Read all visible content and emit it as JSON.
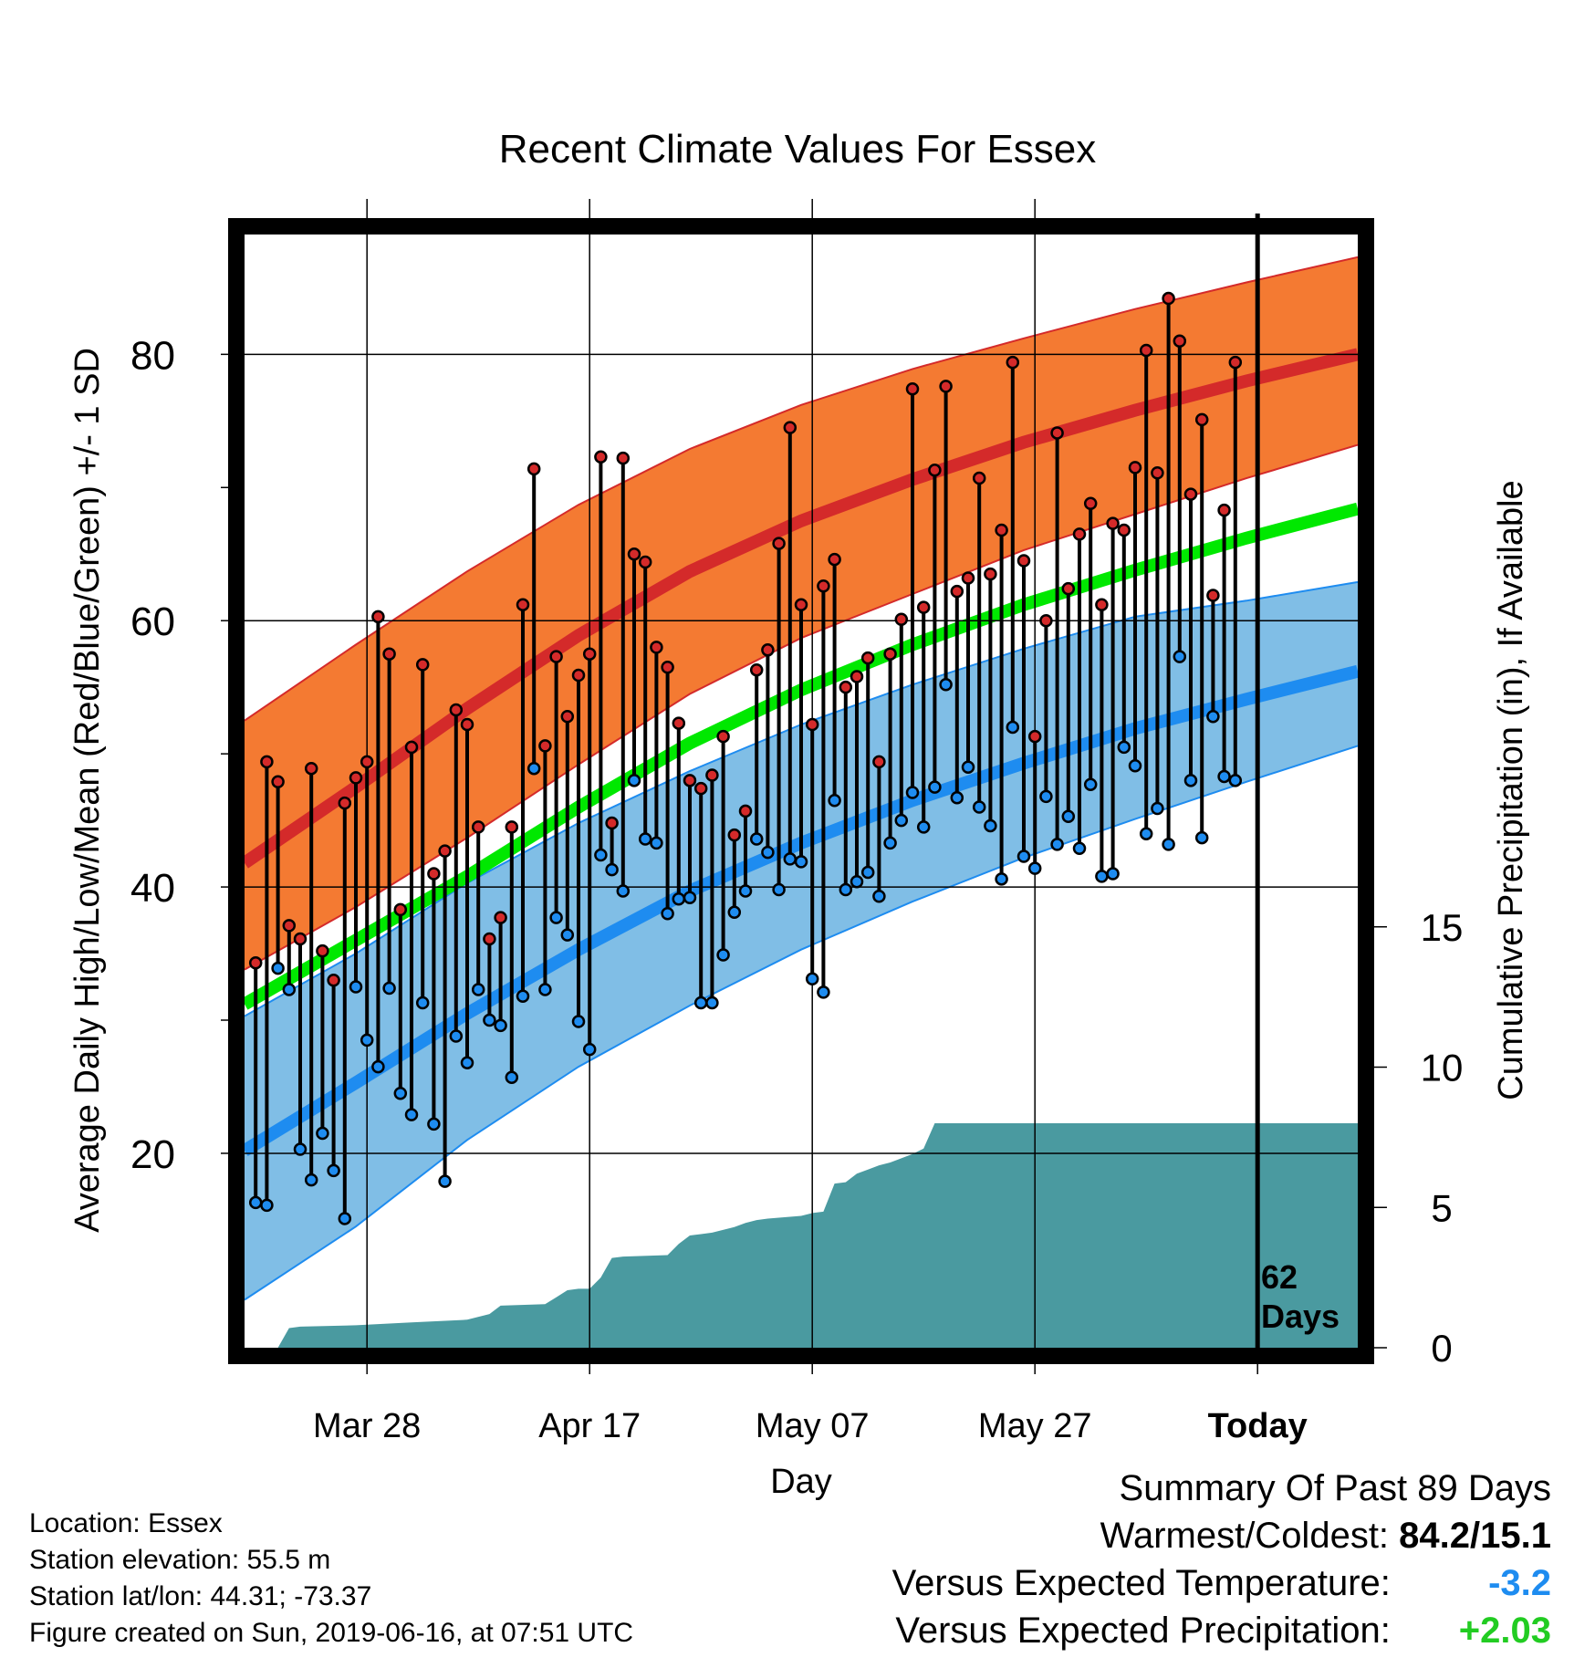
{
  "chart_data": {
    "type": "line",
    "title": "Recent Climate Values For Essex",
    "xlabel": "Day",
    "ylabel": "Average Daily High/Low/Mean (Red/Blue/Green) +/- 1 SD",
    "y2label": "Cumulative Precipitation (in), If Available",
    "xlim": [
      0,
      100
    ],
    "ylim": [
      5.4,
      89.0
    ],
    "y2lim": [
      0,
      20
    ],
    "yticks": [
      20,
      40,
      60,
      80
    ],
    "y2ticks": [
      0,
      5,
      10,
      15
    ],
    "xticks": [
      {
        "day": 11,
        "label": "Mar 28"
      },
      {
        "day": 31,
        "label": "Apr 17"
      },
      {
        "day": 51,
        "label": "May 07"
      },
      {
        "day": 71,
        "label": "May 27"
      },
      {
        "day": 91,
        "label": "Today"
      }
    ],
    "today_day": 91,
    "today_annotation": [
      "62",
      "Days"
    ],
    "grid": true,
    "colors": {
      "high_band": "#f47a32",
      "high_mean": "#d42a2a",
      "low_band": "#80bee6",
      "low_mean": "#1e8cf0",
      "mean_line": "#00e800",
      "precip": "#4a9aa0"
    },
    "normals": {
      "days": [
        0,
        10,
        20,
        30,
        40,
        50,
        60,
        70,
        80,
        90,
        100
      ],
      "high_mean": [
        41.8,
        47.5,
        53.4,
        58.9,
        63.7,
        67.5,
        70.6,
        73.4,
        75.8,
        78.0,
        80.0
      ],
      "high_upper": [
        52.5,
        58.2,
        63.7,
        68.7,
        72.9,
        76.2,
        78.9,
        81.2,
        83.4,
        85.4,
        87.3
      ],
      "high_lower": [
        33.8,
        38.5,
        43.7,
        49.2,
        54.5,
        58.7,
        62.0,
        65.3,
        68.0,
        70.7,
        73.2
      ],
      "mean_line": [
        31.2,
        36.0,
        40.8,
        46.0,
        50.8,
        54.8,
        58.2,
        61.2,
        63.8,
        66.2,
        68.4
      ],
      "low_mean": [
        20.2,
        25.3,
        30.5,
        35.3,
        39.7,
        43.3,
        46.5,
        49.3,
        51.9,
        54.1,
        56.2
      ],
      "low_upper": [
        30.3,
        35.0,
        40.3,
        44.8,
        48.7,
        52.2,
        55.2,
        57.9,
        60.3,
        61.5,
        62.9
      ],
      "low_lower": [
        9.0,
        14.5,
        21.0,
        26.5,
        31.1,
        35.3,
        38.9,
        42.2,
        45.1,
        47.9,
        50.6
      ]
    },
    "series": [
      {
        "name": "High",
        "color": "#d42a2a",
        "days": [
          1,
          2,
          3,
          4,
          5,
          6,
          7,
          8,
          9,
          10,
          11,
          12,
          13,
          14,
          15,
          16,
          17,
          18,
          19,
          20,
          21,
          22,
          23,
          24,
          25,
          26,
          27,
          28,
          29,
          30,
          31,
          32,
          33,
          34,
          35,
          36,
          37,
          38,
          39,
          40,
          41,
          42,
          43,
          44,
          45,
          46,
          47,
          48,
          49,
          50,
          51,
          52,
          53,
          54,
          55,
          56,
          57,
          58,
          59,
          60,
          61,
          62,
          63,
          64,
          65,
          66,
          67,
          68,
          69,
          70,
          71,
          72,
          73,
          74,
          75,
          76,
          77,
          78,
          79,
          80,
          81,
          82,
          83,
          84,
          85,
          86,
          87,
          88,
          89
        ],
        "values": [
          34.3,
          49.4,
          47.9,
          37.1,
          36.1,
          48.9,
          35.2,
          33.0,
          46.3,
          48.2,
          49.4,
          60.3,
          57.5,
          38.3,
          50.5,
          56.7,
          41.0,
          42.7,
          53.3,
          52.2,
          44.5,
          36.1,
          37.7,
          44.5,
          61.2,
          71.4,
          50.6,
          57.3,
          52.8,
          55.9,
          57.5,
          72.3,
          44.8,
          72.2,
          65.0,
          64.4,
          58.0,
          56.5,
          52.3,
          48.0,
          47.4,
          48.4,
          51.3,
          43.9,
          45.7,
          56.3,
          57.8,
          65.8,
          74.5,
          61.2,
          52.2,
          62.6,
          64.6,
          55.0,
          55.8,
          57.2,
          49.4,
          57.5,
          60.1,
          77.4,
          61.0,
          71.3,
          77.6,
          62.2,
          63.2,
          70.7,
          63.5,
          66.8,
          79.4,
          64.5,
          51.3,
          60.0,
          74.1,
          62.4,
          66.5,
          68.8,
          61.2,
          67.3,
          66.8,
          71.5,
          80.3,
          71.1,
          84.2,
          81.0,
          69.5,
          75.1,
          61.9,
          68.3,
          79.4
        ]
      },
      {
        "name": "Low",
        "color": "#1e8cf0",
        "days": [
          1,
          2,
          3,
          4,
          5,
          6,
          7,
          8,
          9,
          10,
          11,
          12,
          13,
          14,
          15,
          16,
          17,
          18,
          19,
          20,
          21,
          22,
          23,
          24,
          25,
          26,
          27,
          28,
          29,
          30,
          31,
          32,
          33,
          34,
          35,
          36,
          37,
          38,
          39,
          40,
          41,
          42,
          43,
          44,
          45,
          46,
          47,
          48,
          49,
          50,
          51,
          52,
          53,
          54,
          55,
          56,
          57,
          58,
          59,
          60,
          61,
          62,
          63,
          64,
          65,
          66,
          67,
          68,
          69,
          70,
          71,
          72,
          73,
          74,
          75,
          76,
          77,
          78,
          79,
          80,
          81,
          82,
          83,
          84,
          85,
          86,
          87,
          88,
          89
        ],
        "values": [
          16.3,
          16.1,
          33.9,
          32.3,
          20.3,
          18.0,
          21.5,
          18.7,
          15.1,
          32.5,
          28.5,
          26.5,
          32.4,
          24.5,
          22.9,
          31.3,
          22.2,
          17.9,
          28.8,
          26.8,
          32.3,
          30.0,
          29.6,
          25.7,
          31.8,
          48.9,
          32.3,
          37.7,
          36.4,
          29.9,
          27.8,
          42.4,
          41.3,
          39.7,
          48.0,
          43.6,
          43.3,
          38.0,
          39.1,
          39.2,
          31.3,
          31.3,
          34.9,
          38.1,
          39.7,
          43.6,
          42.6,
          39.8,
          42.1,
          41.9,
          33.1,
          32.1,
          46.5,
          39.8,
          40.4,
          41.1,
          39.3,
          43.3,
          45.0,
          47.1,
          44.5,
          47.5,
          55.2,
          46.7,
          49.0,
          46.0,
          44.6,
          40.6,
          52.0,
          42.3,
          41.4,
          46.8,
          43.2,
          45.3,
          42.9,
          47.7,
          40.8,
          41.0,
          50.5,
          49.1,
          44.0,
          45.9,
          43.2,
          57.3,
          48.0,
          43.7,
          52.8,
          48.3,
          48.0
        ]
      }
    ],
    "precip": {
      "days": [
        0,
        3,
        4,
        5,
        10,
        15,
        20,
        22,
        23,
        27,
        28,
        29,
        30,
        31,
        32,
        33,
        34,
        38,
        39,
        40,
        41,
        42,
        44,
        45,
        46,
        47,
        50,
        51,
        52,
        53,
        54,
        55,
        56,
        57,
        58,
        59,
        60,
        61,
        62,
        63,
        100
      ],
      "values": [
        0,
        0,
        0.7,
        0.75,
        0.8,
        0.9,
        1.0,
        1.2,
        1.5,
        1.55,
        1.8,
        2.05,
        2.1,
        2.1,
        2.5,
        3.2,
        3.25,
        3.3,
        3.7,
        4.0,
        4.05,
        4.1,
        4.3,
        4.45,
        4.55,
        4.6,
        4.7,
        4.8,
        4.85,
        5.85,
        5.9,
        6.2,
        6.35,
        6.5,
        6.6,
        6.75,
        6.9,
        7.1,
        8.0,
        8.0,
        8.0
      ]
    }
  },
  "info": {
    "location": "Location: Essex",
    "elevation": "Station elevation: 55.5 m",
    "latlon": "Station lat/lon: 44.31; -73.37",
    "created": "Figure created on Sun, 2019-06-16, at 07:51 UTC"
  },
  "summary": {
    "heading": "Summary Of Past 89 Days",
    "warmest_coldest_label": "Warmest/Coldest:",
    "warmest_coldest_value": "84.2/15.1",
    "temp_label": "Versus Expected Temperature:",
    "temp_value": "-3.2",
    "temp_color": "#1e8cf0",
    "precip_label": "Versus Expected Precipitation:",
    "precip_value": "+2.03",
    "precip_color": "#22cc22"
  }
}
